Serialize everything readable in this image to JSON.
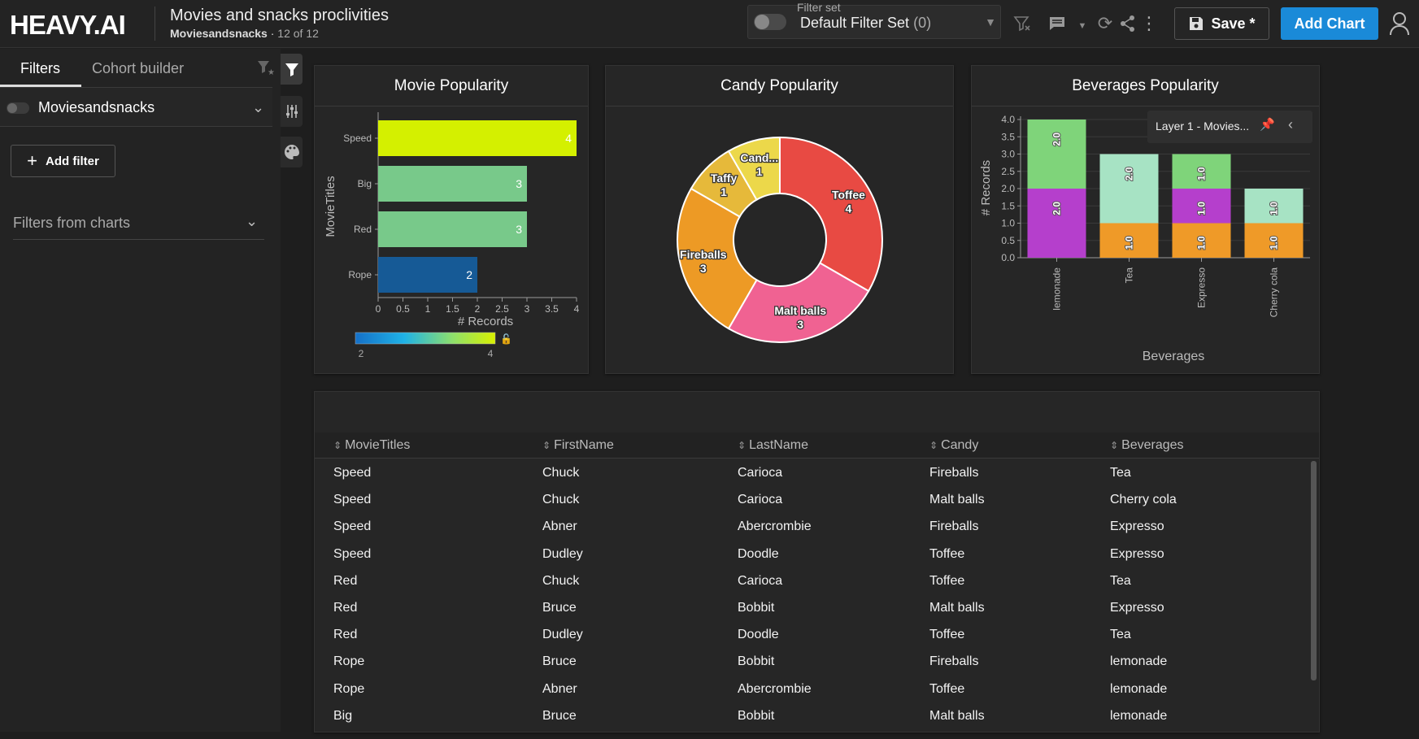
{
  "header": {
    "logo": "HEAVY.AI",
    "title": "Movies and snacks proclivities",
    "source": "Moviesandsnacks",
    "separator": "·",
    "count": "12 of 12",
    "filter_set_label": "Filter set",
    "filter_set_value": "Default Filter Set",
    "filter_set_count": "(0)",
    "save_label": "Save *",
    "add_chart_label": "Add Chart"
  },
  "sidebar": {
    "tabs": [
      "Filters",
      "Cohort builder"
    ],
    "active_tab": "Filters",
    "source_label": "Moviesandsnacks",
    "add_filter_label": "Add filter",
    "filters_from_charts_label": "Filters from charts"
  },
  "charts": {
    "movie": {
      "title": "Movie Popularity",
      "type": "bar",
      "orientation": "horizontal",
      "categories": [
        "Speed",
        "Big",
        "Red",
        "Rope"
      ],
      "values": [
        4,
        3,
        3,
        2
      ],
      "colors": [
        "#d4f000",
        "#78c98a",
        "#78c98a",
        "#165a96"
      ],
      "xlabel": "# Records",
      "ylabel": "MovieTitles",
      "xticks": [
        "0",
        "0.5",
        "1",
        "1.5",
        "2",
        "2.5",
        "3",
        "3.5",
        "4"
      ],
      "xlim": [
        0,
        4
      ],
      "legend_min": "2",
      "legend_max": "4"
    },
    "candy": {
      "title": "Candy Popularity",
      "type": "pie",
      "slices": [
        {
          "label": "Toffee",
          "value": 4,
          "color": "#e84a43"
        },
        {
          "label": "Malt balls",
          "value": 3,
          "color": "#f06292"
        },
        {
          "label": "Fireballs",
          "value": 3,
          "color": "#ed9a25"
        },
        {
          "label": "Taffy",
          "value": 1,
          "color": "#e6b93a"
        },
        {
          "label": "Cand...",
          "value": 1,
          "color": "#ecd84a"
        }
      ]
    },
    "bev": {
      "title": "Beverages Popularity",
      "type": "bar",
      "stacked": true,
      "categories": [
        "lemonade",
        "Tea",
        "Expresso",
        "Cherry cola"
      ],
      "series": [
        {
          "color": "#ef9a28",
          "values": [
            0,
            1,
            1,
            1
          ]
        },
        {
          "color": "#b53fcc",
          "values": [
            2,
            0,
            1,
            0
          ]
        },
        {
          "color": "#a7e3c4",
          "values": [
            0,
            2,
            0,
            1
          ]
        },
        {
          "color": "#7fd47a",
          "values": [
            2,
            0,
            1,
            0
          ]
        }
      ],
      "segment_labels": [
        [
          null,
          "2.0",
          null,
          "2.0"
        ],
        [
          "1.0",
          null,
          "2.0",
          null
        ],
        [
          "1.0",
          "1.0",
          null,
          "1.0"
        ],
        [
          "1.0",
          null,
          "1.0",
          null
        ]
      ],
      "ylabel": "# Records",
      "xlabel": "Beverages",
      "yticks": [
        "0.0",
        "0.5",
        "1.0",
        "1.5",
        "2.0",
        "2.5",
        "3.0",
        "3.5",
        "4.0"
      ],
      "ylim": [
        0,
        4
      ],
      "layer_label": "Layer 1 - Movies..."
    }
  },
  "table": {
    "columns": [
      "MovieTitles",
      "FirstName",
      "LastName",
      "Candy",
      "Beverages"
    ],
    "rows": [
      [
        "Speed",
        "Chuck",
        "Carioca",
        "Fireballs",
        "Tea"
      ],
      [
        "Speed",
        "Chuck",
        "Carioca",
        "Malt balls",
        "Cherry cola"
      ],
      [
        "Speed",
        "Abner",
        "Abercrombie",
        "Fireballs",
        "Expresso"
      ],
      [
        "Speed",
        "Dudley",
        "Doodle",
        "Toffee",
        "Expresso"
      ],
      [
        "Red",
        "Chuck",
        "Carioca",
        "Toffee",
        "Tea"
      ],
      [
        "Red",
        "Bruce",
        "Bobbit",
        "Malt balls",
        "Expresso"
      ],
      [
        "Red",
        "Dudley",
        "Doodle",
        "Toffee",
        "Tea"
      ],
      [
        "Rope",
        "Bruce",
        "Bobbit",
        "Fireballs",
        "lemonade"
      ],
      [
        "Rope",
        "Abner",
        "Abercrombie",
        "Toffee",
        "lemonade"
      ],
      [
        "Big",
        "Bruce",
        "Bobbit",
        "Malt balls",
        "lemonade"
      ]
    ]
  }
}
